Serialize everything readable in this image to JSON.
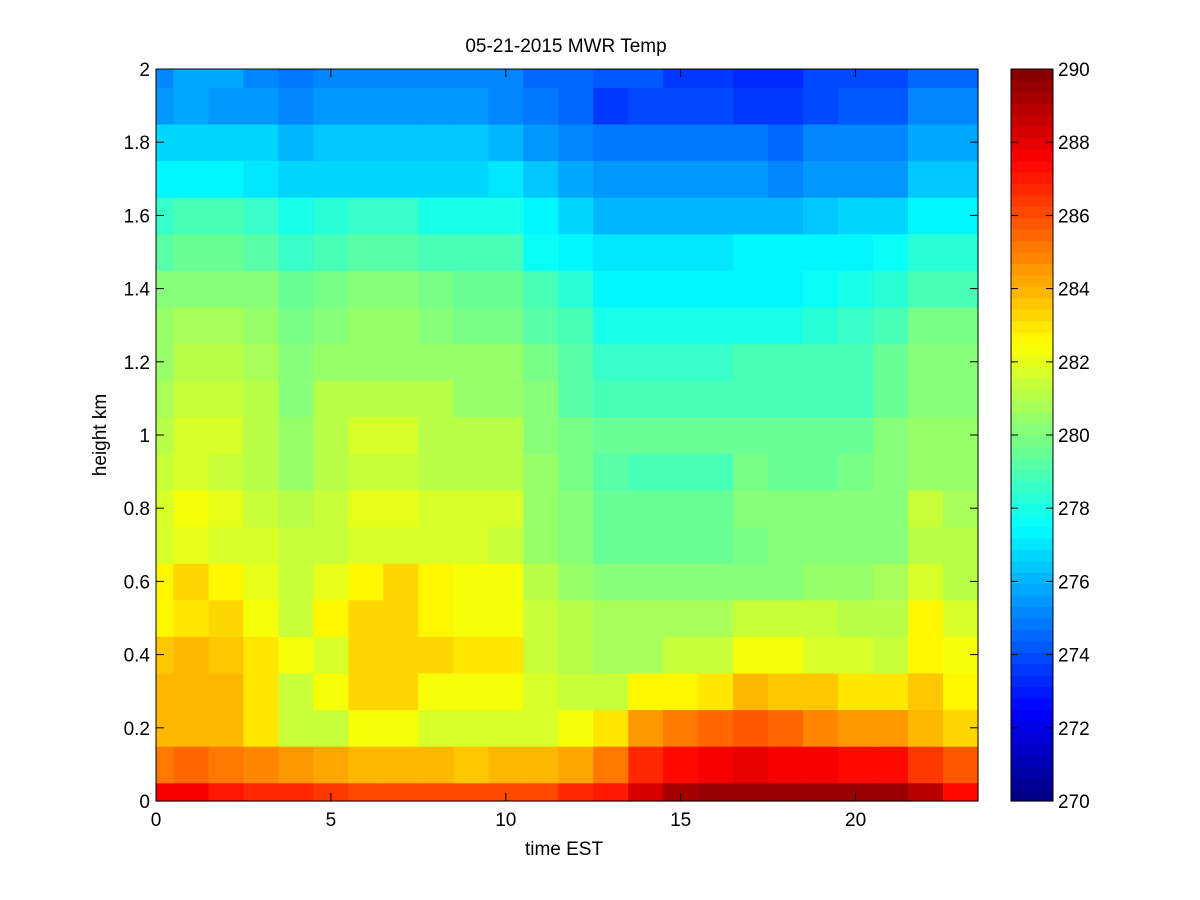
{
  "chart_data": {
    "type": "heatmap",
    "title": "05-21-2015 MWR Temp",
    "xlabel": "time EST",
    "ylabel": "height km",
    "xlim": [
      0,
      23.5
    ],
    "ylim": [
      0,
      2
    ],
    "x_ticks": [
      0,
      5,
      10,
      15,
      20
    ],
    "y_ticks": [
      0,
      0.2,
      0.4,
      0.6,
      0.8,
      1,
      1.2,
      1.4,
      1.6,
      1.8,
      2
    ],
    "x_tick_labels": [
      "0",
      "5",
      "10",
      "15",
      "20"
    ],
    "y_tick_labels": [
      "0",
      "0.2",
      "0.4",
      "0.6",
      "0.8",
      "1",
      "1.2",
      "1.4",
      "1.6",
      "1.8",
      "2"
    ],
    "colormap": "jet",
    "clim": [
      270,
      290
    ],
    "colorbar_ticks": [
      270,
      272,
      274,
      276,
      278,
      280,
      282,
      284,
      286,
      288,
      290
    ],
    "colorbar_tick_labels": [
      "270",
      "272",
      "274",
      "276",
      "278",
      "280",
      "282",
      "284",
      "286",
      "288",
      "290"
    ],
    "colorbar_levels": 64,
    "x_edges": [
      0,
      0.5,
      1.5,
      2.5,
      3.5,
      4.5,
      5.5,
      6.5,
      7.5,
      8.5,
      9.5,
      10.5,
      11.5,
      12.5,
      13.5,
      14.5,
      15.5,
      16.5,
      17.5,
      18.5,
      19.5,
      20.5,
      21.5,
      22.5,
      23.5
    ],
    "y_edges": [
      0,
      0.05,
      0.15,
      0.25,
      0.35,
      0.45,
      0.55,
      0.65,
      0.75,
      0.85,
      0.95,
      1.05,
      1.15,
      1.25,
      1.35,
      1.45,
      1.55,
      1.65,
      1.75,
      1.85,
      1.95,
      2.0
    ],
    "values": [
      [
        287.5,
        287.5,
        287.0,
        286.8,
        286.6,
        286.4,
        286.2,
        286.0,
        286.0,
        286.0,
        286.0,
        286.2,
        286.6,
        287.0,
        288.2,
        289.2,
        289.4,
        289.6,
        289.6,
        289.6,
        289.6,
        289.6,
        288.8,
        287.4
      ],
      [
        285.3,
        285.5,
        285.2,
        284.8,
        284.6,
        284.3,
        284.0,
        284.0,
        283.8,
        283.7,
        283.8,
        283.9,
        284.3,
        285.2,
        286.6,
        287.2,
        287.6,
        288.0,
        287.8,
        287.6,
        287.4,
        287.2,
        286.4,
        285.8
      ],
      [
        284.0,
        284.0,
        284.0,
        283.0,
        281.5,
        281.5,
        282.2,
        282.2,
        281.7,
        281.8,
        281.8,
        281.8,
        282.4,
        283.0,
        284.4,
        285.0,
        285.4,
        285.8,
        285.6,
        284.8,
        284.6,
        284.4,
        284.0,
        283.3
      ],
      [
        283.8,
        284.0,
        283.8,
        283.0,
        281.5,
        282.4,
        283.2,
        283.2,
        282.4,
        282.4,
        282.4,
        281.8,
        281.5,
        281.5,
        282.5,
        282.5,
        283.0,
        284.0,
        283.5,
        283.5,
        283.0,
        283.0,
        283.5,
        282.5
      ],
      [
        283.6,
        283.8,
        283.6,
        283.0,
        282.4,
        281.6,
        283.4,
        283.4,
        283.4,
        283.0,
        283.0,
        281.5,
        281.0,
        280.8,
        280.8,
        281.5,
        281.5,
        282.2,
        282.2,
        281.6,
        281.6,
        281.5,
        282.8,
        282.2
      ],
      [
        282.7,
        283.0,
        283.4,
        282.4,
        281.4,
        282.6,
        283.4,
        283.4,
        282.8,
        282.4,
        282.4,
        281.5,
        281.0,
        280.9,
        280.9,
        280.9,
        280.9,
        281.3,
        281.3,
        281.3,
        281.1,
        281.0,
        282.5,
        281.6
      ],
      [
        282.5,
        283.2,
        282.7,
        282.0,
        281.4,
        282.0,
        282.6,
        283.2,
        282.6,
        282.3,
        282.3,
        281.0,
        280.4,
        280.2,
        280.2,
        280.2,
        280.2,
        280.2,
        280.3,
        280.4,
        280.4,
        280.8,
        281.8,
        281.0
      ],
      [
        281.8,
        282.0,
        281.8,
        281.8,
        281.5,
        281.5,
        281.8,
        281.8,
        281.8,
        281.7,
        281.5,
        280.6,
        280.3,
        279.5,
        279.5,
        279.5,
        279.5,
        279.9,
        280.3,
        280.1,
        280.0,
        280.1,
        281.0,
        281.0
      ],
      [
        281.7,
        282.2,
        282.0,
        281.5,
        281.2,
        281.5,
        282.0,
        282.0,
        281.8,
        281.8,
        281.7,
        280.6,
        280.2,
        279.5,
        279.5,
        279.5,
        279.5,
        280.0,
        280.0,
        280.3,
        280.0,
        280.3,
        281.3,
        280.8
      ],
      [
        281.5,
        281.6,
        281.4,
        281.1,
        280.6,
        281.0,
        281.3,
        281.3,
        281.2,
        281.0,
        281.0,
        280.4,
        279.8,
        279.2,
        278.9,
        279.0,
        279.0,
        279.8,
        279.6,
        279.6,
        279.8,
        280.3,
        280.6,
        280.6
      ],
      [
        281.2,
        281.6,
        281.6,
        281.0,
        280.6,
        281.0,
        281.8,
        281.8,
        281.2,
        281.0,
        281.2,
        280.3,
        279.7,
        279.5,
        279.5,
        279.5,
        279.5,
        279.6,
        279.6,
        279.6,
        279.6,
        280.0,
        280.4,
        280.4
      ],
      [
        280.9,
        281.4,
        281.4,
        281.1,
        280.3,
        281.0,
        281.0,
        281.0,
        281.0,
        280.6,
        280.6,
        280.0,
        279.2,
        279.0,
        279.0,
        278.8,
        279.0,
        279.0,
        279.0,
        279.0,
        278.8,
        279.4,
        280.3,
        280.3
      ],
      [
        280.6,
        281.0,
        281.0,
        280.7,
        280.2,
        280.6,
        280.6,
        280.6,
        280.5,
        280.5,
        280.5,
        279.7,
        279.3,
        278.7,
        278.7,
        278.7,
        278.7,
        279.0,
        279.0,
        279.0,
        279.0,
        279.6,
        280.1,
        280.1
      ],
      [
        280.4,
        280.7,
        280.7,
        280.4,
        279.8,
        280.1,
        280.4,
        280.4,
        280.2,
        279.9,
        279.9,
        279.2,
        278.8,
        278.1,
        278.1,
        278.1,
        278.1,
        278.1,
        278.1,
        278.3,
        278.7,
        279.0,
        279.7,
        279.7
      ],
      [
        280.0,
        280.3,
        280.3,
        280.0,
        279.6,
        279.8,
        280.0,
        280.0,
        279.9,
        279.6,
        279.6,
        279.0,
        278.2,
        277.4,
        277.3,
        277.3,
        277.3,
        277.3,
        277.3,
        277.8,
        278.0,
        278.4,
        279.0,
        278.9
      ],
      [
        279.2,
        279.5,
        279.5,
        279.2,
        278.7,
        279.0,
        279.2,
        279.2,
        279.0,
        279.0,
        279.0,
        277.7,
        277.2,
        277.0,
        277.0,
        277.0,
        277.0,
        277.2,
        277.2,
        277.2,
        277.2,
        277.6,
        278.4,
        278.2
      ],
      [
        278.6,
        278.9,
        279.0,
        278.6,
        278.0,
        278.4,
        278.5,
        278.5,
        278.1,
        277.9,
        277.9,
        277.2,
        276.6,
        276.1,
        276.1,
        276.1,
        276.1,
        276.1,
        276.0,
        276.3,
        276.6,
        276.8,
        277.4,
        277.4
      ],
      [
        277.2,
        277.4,
        277.4,
        277.0,
        276.8,
        276.8,
        276.8,
        276.8,
        276.8,
        276.8,
        277.0,
        276.4,
        275.9,
        275.6,
        275.4,
        275.4,
        275.4,
        275.5,
        275.1,
        275.6,
        275.6,
        275.6,
        276.3,
        276.3
      ],
      [
        276.8,
        276.8,
        276.8,
        276.6,
        276.2,
        276.5,
        276.3,
        276.3,
        276.3,
        276.3,
        276.0,
        275.6,
        275.1,
        274.8,
        274.8,
        274.8,
        274.8,
        274.8,
        274.6,
        275.3,
        275.3,
        275.3,
        275.8,
        275.8
      ],
      [
        275.5,
        275.8,
        275.6,
        275.5,
        275.2,
        275.5,
        275.5,
        275.5,
        275.5,
        275.5,
        275.3,
        274.8,
        274.5,
        273.5,
        274.0,
        274.0,
        274.0,
        273.5,
        273.5,
        274.0,
        274.2,
        274.2,
        275.2,
        275.2
      ],
      [
        275.2,
        275.7,
        275.7,
        275.2,
        274.9,
        275.2,
        275.2,
        275.2,
        275.2,
        275.2,
        275.2,
        274.5,
        274.5,
        274.1,
        274.1,
        273.6,
        273.6,
        273.2,
        273.2,
        274.0,
        274.0,
        274.0,
        274.5,
        274.5
      ]
    ]
  }
}
